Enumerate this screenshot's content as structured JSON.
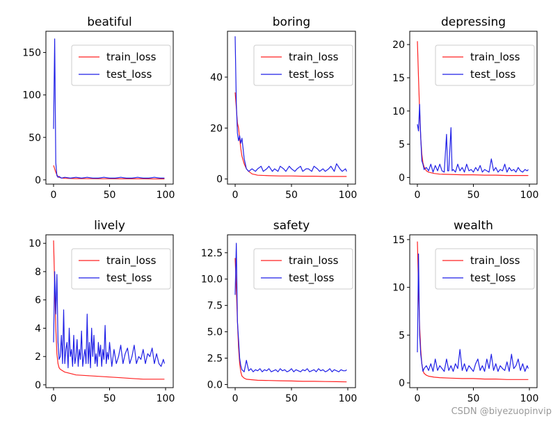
{
  "colors": {
    "train": "#ff2020",
    "test": "#1f1fe6",
    "axes": "#000000",
    "background": "#ffffff"
  },
  "watermark": "CSDN @biyezuopinvip",
  "chart_data": [
    {
      "type": "line",
      "title": "beatiful",
      "xlim": [
        0,
        100
      ],
      "ylim": [
        -5,
        175
      ],
      "xticks": [
        0,
        50,
        100
      ],
      "yticks": [
        0,
        50,
        100,
        150
      ],
      "legend": [
        "train_loss",
        "test_loss"
      ],
      "legend_position": "upper right",
      "series": [
        {
          "name": "train_loss",
          "x": [
            0,
            1,
            2,
            3,
            4,
            5,
            6,
            8,
            10,
            15,
            20,
            30,
            40,
            50,
            60,
            70,
            80,
            90,
            99
          ],
          "y": [
            17,
            13,
            9,
            6,
            4,
            3,
            2.5,
            2,
            1.8,
            1.6,
            1.5,
            1.4,
            1.3,
            1.3,
            1.2,
            1.2,
            1.2,
            1.1,
            1.1
          ]
        },
        {
          "name": "test_loss",
          "x": [
            0,
            1,
            2,
            3,
            4,
            5,
            7,
            10,
            15,
            20,
            25,
            30,
            35,
            40,
            45,
            50,
            55,
            60,
            65,
            70,
            75,
            80,
            85,
            90,
            95,
            99
          ],
          "y": [
            60,
            166,
            20,
            5,
            3,
            4,
            2,
            3,
            2,
            3,
            2,
            3,
            2,
            2,
            3,
            2,
            2,
            3,
            2,
            2,
            3,
            2,
            2,
            3,
            2,
            2
          ]
        }
      ]
    },
    {
      "type": "line",
      "title": "boring",
      "xlim": [
        0,
        100
      ],
      "ylim": [
        -2,
        58
      ],
      "xticks": [
        0,
        50,
        100
      ],
      "yticks": [
        0,
        20,
        40
      ],
      "legend": [
        "train_loss",
        "test_loss"
      ],
      "legend_position": "upper right",
      "series": [
        {
          "name": "train_loss",
          "x": [
            0,
            1,
            2,
            3,
            4,
            5,
            6,
            8,
            10,
            12,
            15,
            20,
            30,
            40,
            50,
            60,
            70,
            80,
            90,
            99
          ],
          "y": [
            34,
            28,
            22,
            20,
            16,
            12,
            9,
            6,
            4,
            3,
            2,
            1.5,
            1.3,
            1.2,
            1.2,
            1.1,
            1.1,
            1.0,
            1.0,
            1.0
          ]
        },
        {
          "name": "test_loss",
          "x": [
            0,
            1,
            2,
            3,
            4,
            5,
            6,
            7,
            8,
            10,
            12,
            15,
            18,
            20,
            23,
            25,
            28,
            30,
            33,
            35,
            38,
            40,
            43,
            45,
            48,
            50,
            53,
            55,
            58,
            60,
            63,
            65,
            68,
            70,
            73,
            75,
            78,
            80,
            83,
            85,
            88,
            90,
            93,
            95,
            98,
            99
          ],
          "y": [
            56,
            30,
            18,
            15,
            17,
            14,
            16,
            12,
            8,
            4,
            3,
            4,
            3,
            4,
            5,
            3,
            4,
            5,
            3,
            4,
            3,
            5,
            4,
            3,
            5,
            4,
            3,
            4,
            5,
            3,
            4,
            4,
            3,
            5,
            4,
            3,
            4,
            3,
            4,
            5,
            3,
            6,
            4,
            3,
            4,
            3
          ]
        }
      ]
    },
    {
      "type": "line",
      "title": "depressing",
      "xlim": [
        0,
        100
      ],
      "ylim": [
        -1,
        22
      ],
      "xticks": [
        0,
        50,
        100
      ],
      "yticks": [
        0,
        5,
        10,
        15,
        20
      ],
      "legend": [
        "train_loss",
        "test_loss"
      ],
      "legend_position": "upper right",
      "series": [
        {
          "name": "train_loss",
          "x": [
            0,
            1,
            2,
            3,
            4,
            5,
            6,
            8,
            10,
            15,
            20,
            30,
            40,
            50,
            60,
            70,
            80,
            90,
            99
          ],
          "y": [
            20.5,
            15,
            10,
            6,
            3.5,
            2.2,
            1.6,
            1.0,
            0.8,
            0.6,
            0.5,
            0.45,
            0.4,
            0.4,
            0.35,
            0.35,
            0.3,
            0.3,
            0.3
          ]
        },
        {
          "name": "test_loss",
          "x": [
            0,
            1,
            2,
            3,
            4,
            5,
            6,
            8,
            10,
            12,
            14,
            16,
            18,
            20,
            22,
            24,
            26,
            27,
            28,
            30,
            31,
            32,
            34,
            36,
            38,
            40,
            42,
            44,
            46,
            48,
            50,
            52,
            54,
            56,
            58,
            60,
            62,
            64,
            66,
            68,
            70,
            72,
            74,
            76,
            78,
            80,
            82,
            84,
            86,
            88,
            90,
            92,
            94,
            96,
            98,
            99
          ],
          "y": [
            8,
            7,
            11,
            6,
            2.5,
            2,
            1.2,
            1.5,
            1,
            2,
            0.8,
            1.8,
            1,
            2,
            1,
            0.8,
            6.5,
            1,
            1,
            7.5,
            1,
            1.2,
            0.8,
            2,
            1,
            1.5,
            0.8,
            2,
            1,
            1.2,
            0.8,
            1.5,
            1,
            1.8,
            0.8,
            1.2,
            1,
            0.8,
            2.8,
            1,
            1.5,
            0.8,
            1.2,
            1,
            2,
            0.8,
            1.5,
            1,
            1.2,
            0.8,
            1.5,
            1,
            0.8,
            1.2,
            1,
            1.2
          ]
        }
      ]
    },
    {
      "type": "line",
      "title": "lively",
      "xlim": [
        0,
        100
      ],
      "ylim": [
        -0.2,
        10.6
      ],
      "xticks": [
        0,
        50,
        100
      ],
      "yticks": [
        0,
        2,
        4,
        6,
        8,
        10
      ],
      "legend": [
        "train_loss",
        "test_loss"
      ],
      "legend_position": "upper right",
      "series": [
        {
          "name": "train_loss",
          "x": [
            0,
            1,
            2,
            3,
            4,
            5,
            6,
            8,
            10,
            15,
            20,
            30,
            40,
            50,
            60,
            70,
            80,
            90,
            99
          ],
          "y": [
            10.2,
            7,
            4,
            2.2,
            1.5,
            1.2,
            1.1,
            1.0,
            0.9,
            0.8,
            0.7,
            0.65,
            0.6,
            0.55,
            0.5,
            0.45,
            0.4,
            0.4,
            0.4
          ]
        },
        {
          "name": "test_loss",
          "x": [
            0,
            1,
            2,
            3,
            4,
            5,
            6,
            7,
            8,
            9,
            10,
            11,
            12,
            13,
            14,
            15,
            16,
            17,
            18,
            19,
            20,
            21,
            22,
            23,
            24,
            25,
            26,
            27,
            28,
            29,
            30,
            31,
            32,
            33,
            34,
            35,
            36,
            37,
            38,
            39,
            40,
            41,
            42,
            43,
            44,
            45,
            46,
            47,
            48,
            49,
            50,
            52,
            54,
            56,
            58,
            60,
            62,
            64,
            66,
            68,
            70,
            72,
            74,
            76,
            78,
            80,
            82,
            84,
            86,
            88,
            90,
            92,
            94,
            96,
            98,
            99
          ],
          "y": [
            3,
            8,
            5,
            7.8,
            3,
            1.8,
            2,
            3.5,
            1.5,
            5.3,
            1.5,
            2.5,
            3,
            1.2,
            4,
            2,
            2.5,
            1.3,
            3.5,
            1.5,
            2,
            3.2,
            1.3,
            2.5,
            1.8,
            3.8,
            1.3,
            2,
            2.5,
            1.5,
            5,
            1.5,
            3,
            1.2,
            4,
            2,
            3.5,
            1.5,
            2.2,
            1.3,
            3,
            2,
            2.8,
            1.3,
            2.5,
            1.8,
            4.2,
            1.5,
            2.3,
            1.8,
            3,
            1.3,
            2.5,
            1.5,
            2,
            2.8,
            1.5,
            2.2,
            2.6,
            1.5,
            2,
            2.8,
            1.5,
            2,
            1.8,
            2.5,
            1.5,
            2.2,
            2,
            2.6,
            1.5,
            2.2,
            1.5,
            1.3,
            1.8,
            1.5
          ]
        }
      ]
    },
    {
      "type": "line",
      "title": "safety",
      "xlim": [
        0,
        100
      ],
      "ylim": [
        -0.3,
        14.2
      ],
      "xticks": [
        0,
        50,
        100
      ],
      "yticks": [
        0.0,
        2.5,
        5.0,
        7.5,
        10.0,
        12.5
      ],
      "tick_labels": [
        "0.0",
        "2.5",
        "5.0",
        "7.5",
        "10.0",
        "12.5"
      ],
      "legend": [
        "train_loss",
        "test_loss"
      ],
      "legend_position": "upper right",
      "series": [
        {
          "name": "train_loss",
          "x": [
            0,
            1,
            2,
            3,
            4,
            5,
            6,
            8,
            10,
            15,
            20,
            30,
            40,
            50,
            60,
            70,
            80,
            90,
            99
          ],
          "y": [
            12,
            9,
            6,
            3.5,
            2,
            1.2,
            0.8,
            0.6,
            0.5,
            0.45,
            0.4,
            0.38,
            0.35,
            0.33,
            0.3,
            0.3,
            0.28,
            0.27,
            0.25
          ]
        },
        {
          "name": "test_loss",
          "x": [
            0,
            1,
            2,
            3,
            4,
            5,
            6,
            8,
            10,
            12,
            14,
            16,
            18,
            20,
            22,
            24,
            26,
            28,
            30,
            32,
            34,
            36,
            38,
            40,
            42,
            44,
            46,
            48,
            50,
            52,
            54,
            56,
            58,
            60,
            62,
            64,
            66,
            68,
            70,
            72,
            74,
            76,
            78,
            80,
            82,
            84,
            86,
            88,
            90,
            92,
            94,
            96,
            98,
            99
          ],
          "y": [
            8.5,
            13.4,
            6,
            4.3,
            2.5,
            1.8,
            1.4,
            1.2,
            2.3,
            1.3,
            1.5,
            1.2,
            1.4,
            1.3,
            1.5,
            1.2,
            1.4,
            1.3,
            1.5,
            1.2,
            1.3,
            1.4,
            1.2,
            1.5,
            1.3,
            1.4,
            1.2,
            1.3,
            1.5,
            1.2,
            1.4,
            1.3,
            1.2,
            1.4,
            1.3,
            1.5,
            1.2,
            1.3,
            1.4,
            1.2,
            1.5,
            1.3,
            1.4,
            1.2,
            1.3,
            1.5,
            1.2,
            1.4,
            1.3,
            1.2,
            1.4,
            1.3,
            1.3,
            1.4
          ]
        }
      ]
    },
    {
      "type": "line",
      "title": "wealth",
      "xlim": [
        0,
        100
      ],
      "ylim": [
        -0.5,
        15.5
      ],
      "xticks": [
        0,
        50,
        100
      ],
      "yticks": [
        0,
        5,
        10,
        15
      ],
      "legend": [
        "train_loss",
        "test_loss"
      ],
      "legend_position": "upper right",
      "series": [
        {
          "name": "train_loss",
          "x": [
            0,
            1,
            2,
            3,
            4,
            5,
            6,
            8,
            10,
            15,
            20,
            30,
            40,
            50,
            60,
            70,
            80,
            90,
            99
          ],
          "y": [
            14.8,
            10,
            6,
            3.5,
            2,
            1.3,
            1.0,
            0.8,
            0.7,
            0.6,
            0.55,
            0.5,
            0.45,
            0.45,
            0.4,
            0.4,
            0.35,
            0.35,
            0.35
          ]
        },
        {
          "name": "test_loss",
          "x": [
            0,
            1,
            2,
            3,
            4,
            5,
            6,
            8,
            10,
            12,
            14,
            16,
            18,
            20,
            22,
            24,
            26,
            28,
            30,
            32,
            34,
            36,
            38,
            40,
            42,
            44,
            46,
            48,
            50,
            52,
            54,
            56,
            58,
            60,
            62,
            64,
            66,
            68,
            70,
            72,
            74,
            76,
            78,
            80,
            82,
            84,
            86,
            88,
            90,
            92,
            94,
            96,
            98,
            99
          ],
          "y": [
            3.2,
            13.5,
            5,
            3,
            2,
            1.2,
            1.5,
            1.8,
            1.3,
            2,
            1.2,
            2.5,
            1.3,
            1.8,
            1.5,
            1.2,
            2.5,
            1.3,
            1.8,
            1.2,
            2,
            1.5,
            3.5,
            1.3,
            2,
            1.2,
            1.8,
            1.5,
            1.2,
            2,
            2.5,
            1.3,
            1.8,
            1.2,
            2.5,
            1.5,
            3,
            1.3,
            2,
            1.2,
            1.8,
            1.5,
            1.3,
            2.2,
            1.2,
            3,
            1.5,
            1.8,
            2.5,
            1.3,
            2,
            1.2,
            1.8,
            1.5
          ]
        }
      ]
    }
  ]
}
